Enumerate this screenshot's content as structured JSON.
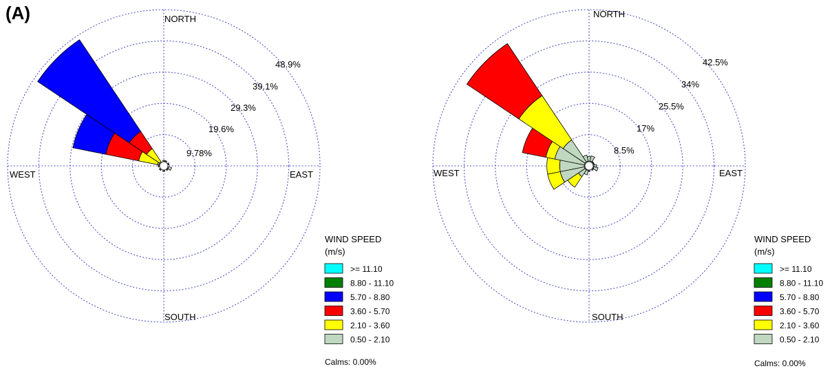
{
  "panel_label": "(A)",
  "legend_title_line1": "WIND SPEED",
  "legend_title_line2": "(m/s)",
  "colors": {
    "grid": "#5050c8",
    "bins": [
      "#c0d8c0",
      "#ffff00",
      "#ff0000",
      "#0000ff",
      "#008000",
      "#00ffff"
    ]
  },
  "chart_data": [
    {
      "type": "windrose",
      "directions": [
        "N",
        "NNE",
        "NE",
        "ENE",
        "E",
        "ESE",
        "SE",
        "SSE",
        "S",
        "SSW",
        "SW",
        "WSW",
        "W",
        "WNW",
        "NW",
        "NNW"
      ],
      "direction_labels": {
        "north": "NORTH",
        "south": "SOUTH",
        "east": "EAST",
        "west": "WEST"
      },
      "ring_labels": [
        "9.78%",
        "19.6%",
        "29.3%",
        "39.1%",
        "48.9%"
      ],
      "rmax_percent": 48.9,
      "speed_bins": [
        "0.50 - 2.10",
        "2.10 - 3.60",
        "3.60 - 5.70",
        "5.70 - 8.80",
        "8.80 - 11.10",
        ">= 11.10"
      ],
      "legend_bins": [
        ">= 11.10",
        "8.80 - 11.10",
        "5.70 - 8.80",
        "3.60 - 5.70",
        "2.10 - 3.60",
        "0.50 - 2.10"
      ],
      "calms": "Calms: 0.00%",
      "frequencies_cumulative_percent": {
        "N": [
          0.8,
          0.8,
          0.8,
          0.8,
          0.8,
          0.8
        ],
        "NNE": [
          1.2,
          1.2,
          1.2,
          1.2,
          1.2,
          1.2
        ],
        "ENE": [
          0.6,
          0.6,
          0.6,
          0.6,
          0.6,
          0.6
        ],
        "ESE": [
          2.5,
          2.5,
          2.5,
          2.5,
          2.5,
          2.5
        ],
        "SE": [
          0.6,
          0.6,
          0.6,
          0.6,
          0.6,
          0.6
        ],
        "S": [
          0.8,
          0.8,
          0.8,
          0.8,
          0.8,
          0.8
        ],
        "SW": [
          0.8,
          0.8,
          0.8,
          0.8,
          0.8,
          0.8
        ],
        "W": [
          0.9,
          0.9,
          0.9,
          0.9,
          0.9,
          0.9
        ],
        "WNW": [
          2.0,
          8.0,
          18.5,
          29.0,
          29.0,
          29.0
        ],
        "NW": [
          1.5,
          6.5,
          13.0,
          47.5,
          47.5,
          47.5
        ]
      }
    },
    {
      "type": "windrose",
      "directions": [
        "N",
        "NNE",
        "NE",
        "ENE",
        "E",
        "ESE",
        "SE",
        "SSE",
        "S",
        "SSW",
        "SW",
        "WSW",
        "W",
        "WNW",
        "NW",
        "NNW"
      ],
      "direction_labels": {
        "north": "NORTH",
        "south": "SOUTH",
        "east": "EAST",
        "west": "WEST"
      },
      "ring_labels": [
        "8.5%",
        "17%",
        "25.5%",
        "34%",
        "42.5%"
      ],
      "rmax_percent": 42.5,
      "speed_bins": [
        "0.50 - 2.10",
        "2.10 - 3.60",
        "3.60 - 5.70",
        "5.70 - 8.80",
        "8.80 - 11.10",
        ">= 11.10"
      ],
      "legend_bins": [
        ">= 11.10",
        "8.80 - 11.10",
        "5.70 - 8.80",
        "3.60 - 5.70",
        "2.10 - 3.60",
        "0.50 - 2.10"
      ],
      "calms": "Calms: 0.00%",
      "frequencies_cumulative_percent": {
        "N": [
          2.5,
          2.5,
          2.5,
          2.5,
          2.5,
          2.5
        ],
        "NNE": [
          2.8,
          2.8,
          2.8,
          2.8,
          2.8,
          2.8
        ],
        "NE": [
          1.2,
          1.2,
          1.2,
          1.2,
          1.2,
          1.2
        ],
        "ENE": [
          1.5,
          1.5,
          1.5,
          1.5,
          1.5,
          1.5
        ],
        "E": [
          2.0,
          2.0,
          2.0,
          2.0,
          2.0,
          2.0
        ],
        "ESE": [
          2.5,
          2.5,
          2.5,
          2.5,
          2.5,
          2.5
        ],
        "SE": [
          1.5,
          1.5,
          1.5,
          1.5,
          1.5,
          1.5
        ],
        "S": [
          1.2,
          1.2,
          1.2,
          1.2,
          1.2,
          1.2
        ],
        "SSW": [
          2.5,
          2.5,
          2.5,
          2.5,
          2.5,
          2.5
        ],
        "SW": [
          3.5,
          7.0,
          7.0,
          7.0,
          7.0,
          7.0
        ],
        "WSW": [
          8.0,
          11.5,
          11.5,
          11.5,
          11.5,
          11.5
        ],
        "W": [
          8.0,
          11.5,
          11.5,
          11.5,
          11.5,
          11.5
        ],
        "WNW": [
          9.5,
          12.0,
          18.5,
          18.5,
          18.5,
          18.5
        ],
        "NW": [
          8.5,
          23.0,
          40.0,
          40.0,
          40.0,
          40.0
        ],
        "NNW": [
          3.0,
          3.0,
          3.0,
          3.0,
          3.0,
          3.0
        ]
      }
    }
  ]
}
